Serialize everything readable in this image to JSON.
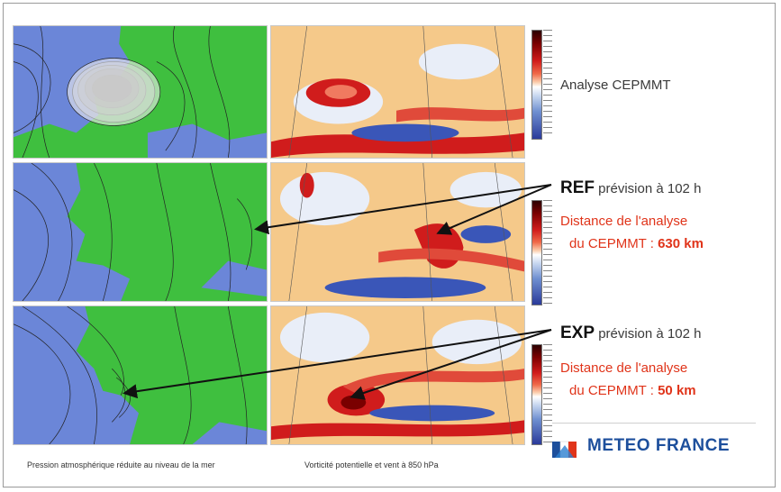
{
  "labels": {
    "analyse": "Analyse CEPMMT",
    "ref_name": "REF",
    "ref_text": " prévision à 102 h",
    "ref_distance_line1": "Distance de l'analyse",
    "ref_distance_line2": "du CEPMMT : ",
    "ref_distance_value": "630 km",
    "exp_name": "EXP",
    "exp_text": " prévision à 102 h",
    "exp_distance_line1": "Distance de l'analyse",
    "exp_distance_line2": "du CEPMMT : ",
    "exp_distance_value": "50 km"
  },
  "captions": {
    "left": "Pression atmosphérique réduite au niveau de la mer",
    "right": "Vorticité potentielle et vent à 850 hPa"
  },
  "brand": {
    "name": "METEO FRANCE",
    "color": "#1d4f9c",
    "logo_icon": "meteo-france-logo"
  },
  "colors": {
    "land": "#3fbf3f",
    "sea": "#6b86d8",
    "accent_red": "#e0341a",
    "vorticity_high": "#d01c1c",
    "vorticity_low": "#3a56b8",
    "background_orange": "#f5c98a"
  }
}
